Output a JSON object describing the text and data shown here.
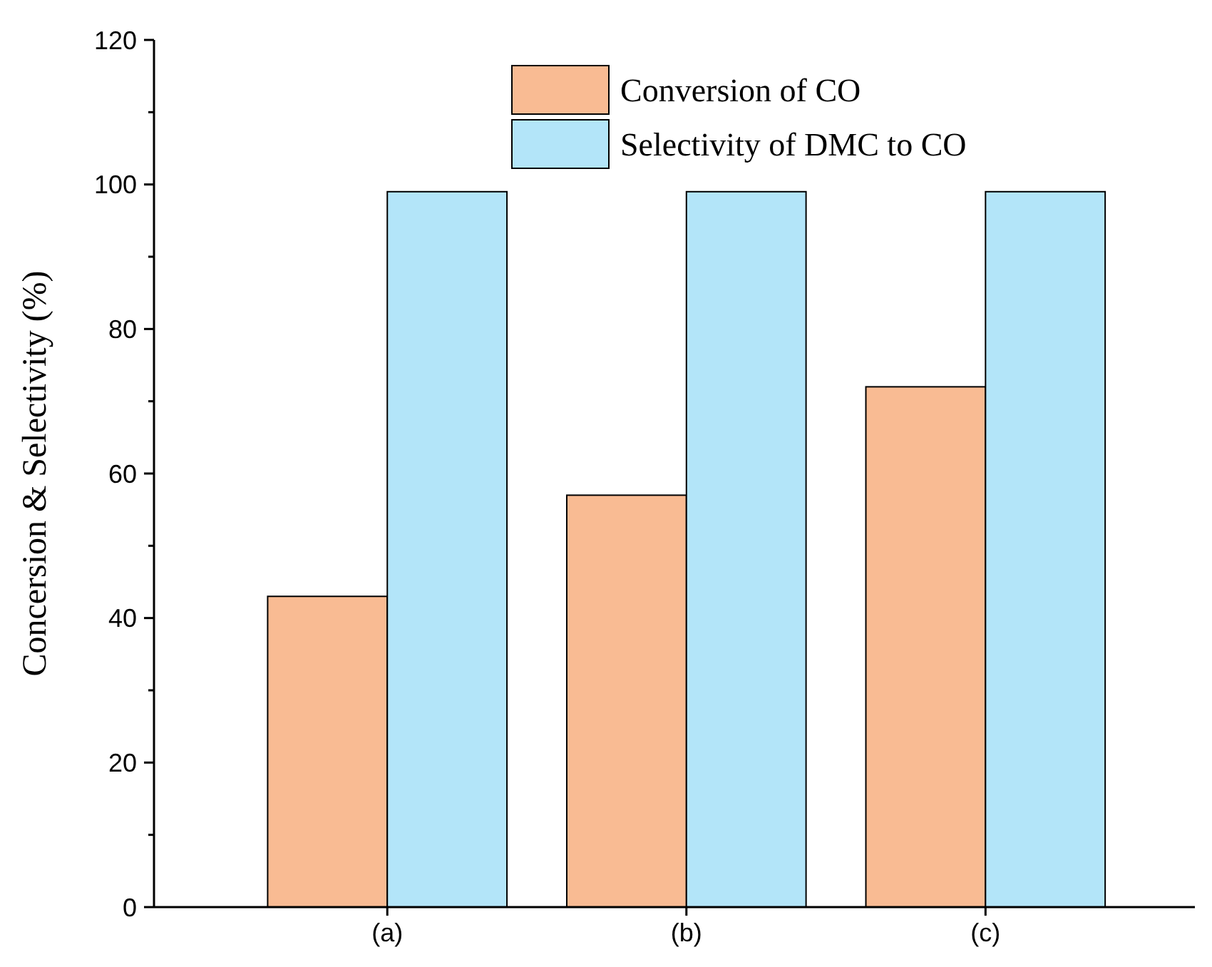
{
  "chart_data": {
    "type": "bar",
    "ylabel": "Concersion & Selectivity (%)",
    "categories": [
      "(a)",
      "(b)",
      "(c)"
    ],
    "series": [
      {
        "name": "Conversion of CO",
        "color": "#f9bb93",
        "values": [
          43,
          57,
          72
        ]
      },
      {
        "name": "Selectivity of DMC to CO",
        "color": "#b3e5f9",
        "values": [
          99,
          99,
          99
        ]
      }
    ],
    "ylim": [
      0,
      120
    ],
    "yticks": [
      0,
      {
        "value": 10,
        "label": null
      },
      20,
      {
        "value": 30,
        "label": null
      },
      40,
      {
        "value": 50,
        "label": null
      },
      60,
      {
        "value": 70,
        "label": null
      },
      80,
      {
        "value": 90,
        "label": null
      },
      100,
      {
        "value": 110,
        "label": null
      },
      120
    ],
    "legend": "top",
    "grid": false
  }
}
